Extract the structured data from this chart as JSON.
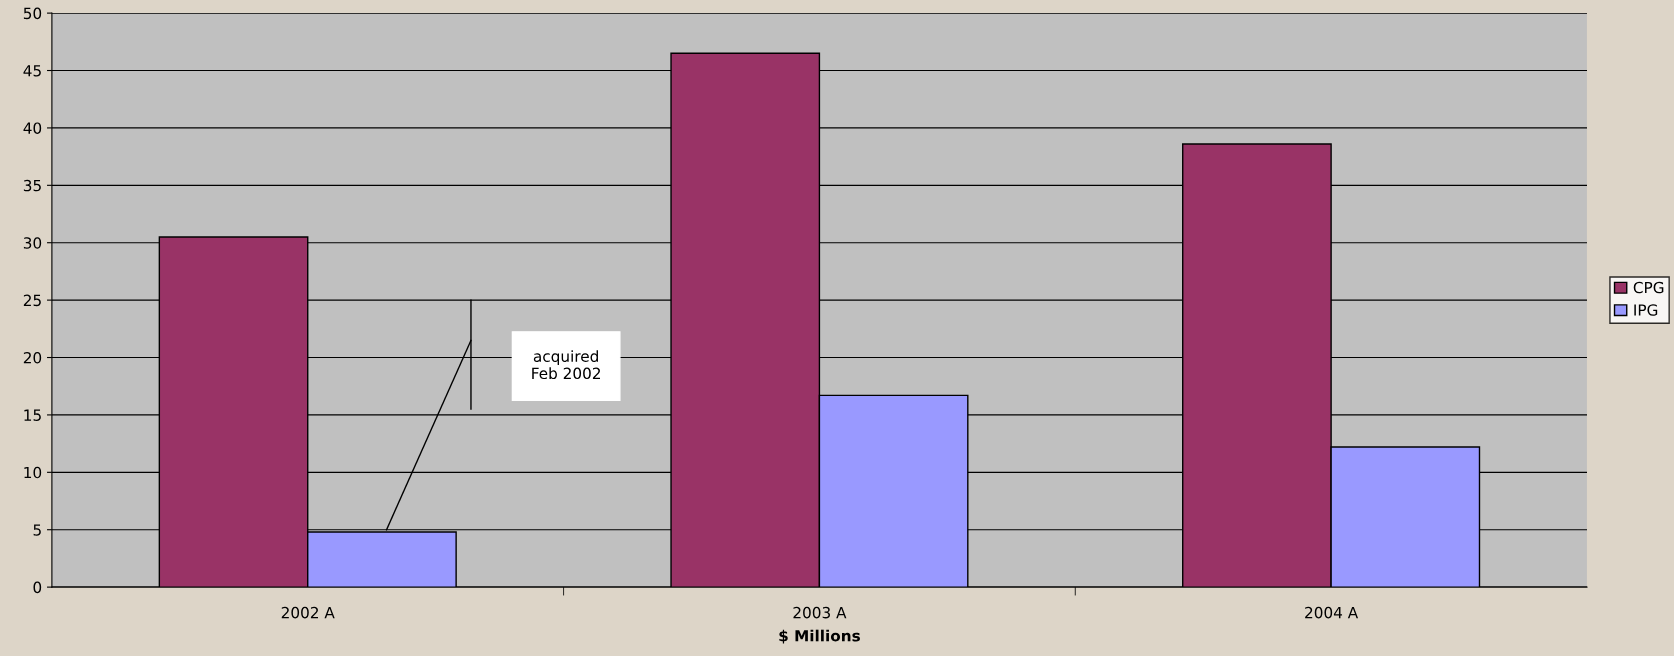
{
  "chart_data": {
    "type": "bar",
    "xlabel": "$ Millions",
    "categories": [
      "2002 A",
      "2003 A",
      "2004 A"
    ],
    "series": [
      {
        "name": "CPG",
        "color": "#993366",
        "values": [
          30.5,
          46.5,
          38.6
        ]
      },
      {
        "name": "IPG",
        "color": "#9999ff",
        "values": [
          4.8,
          16.7,
          12.2
        ]
      }
    ],
    "ylim": [
      0,
      50
    ],
    "yticks": [
      0,
      5,
      10,
      15,
      20,
      25,
      30,
      35,
      40,
      45,
      50
    ],
    "grid": "y",
    "legend": "right",
    "annotations": [
      "acquired\nFeb 2002"
    ]
  }
}
